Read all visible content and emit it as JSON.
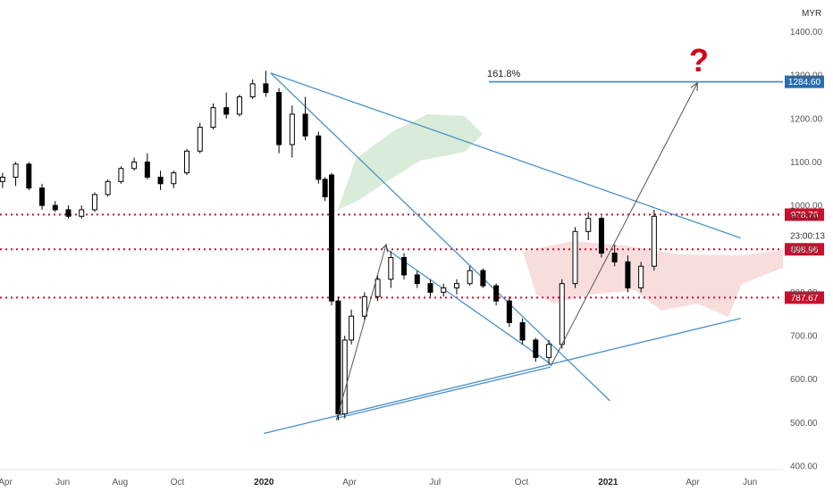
{
  "colors": {
    "candle": "#000000",
    "trendline": "#4a90c8",
    "resistance_dotted": "#c8102e",
    "arrow": "#555555",
    "cloud_green": "#cfe6cf",
    "cloud_red": "#f6d2d2",
    "price_badge_blue": "#2a6db0",
    "price_badge_red": "#c8102e",
    "question_mark": "#d0021b"
  },
  "chart_data": {
    "type": "candlestick",
    "currency": "MYR",
    "y_axis": {
      "ticks": [
        400,
        500,
        600,
        700,
        800,
        900,
        1000,
        1100,
        1200,
        1300,
        1400
      ],
      "labels": [
        "400.00",
        "500.00",
        "600.00",
        "700.00",
        "800.00",
        "900.00",
        "1000.00",
        "1100.00",
        "1200.00",
        "1300.00",
        "1400.00"
      ],
      "range": [
        400,
        1410
      ]
    },
    "x_axis": {
      "labels": [
        "Apr",
        "Jun",
        "Aug",
        "Oct",
        "2020",
        "Apr",
        "Jul",
        "Oct",
        "2021",
        "Apr",
        "Jun"
      ],
      "bold_labels": [
        "2020",
        "2021"
      ],
      "positions": [
        "2019-04-01",
        "2019-06-01",
        "2019-08-01",
        "2019-10-01",
        "2020-01-01",
        "2020-04-01",
        "2020-07-01",
        "2020-10-01",
        "2021-01-01",
        "2021-04-01",
        "2021-06-01"
      ]
    },
    "price_levels": [
      {
        "label": "1284.60",
        "value": 1284.6,
        "style": "solid-blue"
      },
      {
        "label": "978.76",
        "value": 978.76,
        "style": "dotted-red"
      },
      {
        "label": "898.96",
        "value": 898.96,
        "style": "dotted-red"
      },
      {
        "label": "787.67",
        "value": 787.67,
        "style": "dotted-red"
      }
    ],
    "price_readouts": [
      {
        "label": "973.99",
        "value": 973.99
      },
      {
        "label": "23:00:13",
        "value": 930
      }
    ],
    "fib_label": "161.8%",
    "annotation": "?",
    "trendlines": [
      {
        "name": "upper-channel",
        "from": [
          "2020-01-08",
          1305
        ],
        "to": [
          "2021-05-22",
          925
        ]
      },
      {
        "name": "steep-down",
        "from": [
          "2020-01-08",
          1305
        ],
        "to": [
          "2021-01-03",
          550
        ]
      },
      {
        "name": "lower-support",
        "from": [
          "2020-01-01",
          475
        ],
        "to": [
          "2021-05-22",
          740
        ]
      },
      {
        "name": "wedge-top",
        "from": [
          "2020-05-10",
          900
        ],
        "to": [
          "2020-11-01",
          635
        ]
      },
      {
        "name": "wedge-bottom",
        "from": [
          "2020-03-18",
          510
        ],
        "to": [
          "2020-11-01",
          628
        ]
      }
    ],
    "arrows": [
      {
        "from": [
          "2020-03-18",
          505
        ],
        "to": [
          "2020-05-10",
          910
        ]
      },
      {
        "from": [
          "2020-11-01",
          630
        ],
        "to": [
          "2021-04-06",
          1282
        ]
      }
    ],
    "candles": [
      [
        "2019-03-15",
        1080,
        1095,
        1040,
        1055
      ],
      [
        "2019-03-29",
        1055,
        1075,
        1040,
        1065
      ],
      [
        "2019-04-12",
        1065,
        1100,
        1045,
        1095
      ],
      [
        "2019-04-26",
        1095,
        1100,
        1035,
        1040
      ],
      [
        "2019-05-10",
        1040,
        1050,
        990,
        1000
      ],
      [
        "2019-05-24",
        1000,
        1010,
        985,
        990
      ],
      [
        "2019-06-07",
        990,
        1000,
        970,
        975
      ],
      [
        "2019-06-21",
        975,
        1000,
        970,
        990
      ],
      [
        "2019-07-05",
        990,
        1030,
        985,
        1025
      ],
      [
        "2019-07-19",
        1025,
        1060,
        1020,
        1055
      ],
      [
        "2019-08-02",
        1055,
        1090,
        1050,
        1085
      ],
      [
        "2019-08-16",
        1085,
        1110,
        1080,
        1100
      ],
      [
        "2019-08-30",
        1100,
        1120,
        1060,
        1065
      ],
      [
        "2019-09-13",
        1065,
        1080,
        1035,
        1050
      ],
      [
        "2019-09-27",
        1050,
        1080,
        1040,
        1075
      ],
      [
        "2019-10-11",
        1075,
        1130,
        1070,
        1125
      ],
      [
        "2019-10-25",
        1125,
        1190,
        1120,
        1180
      ],
      [
        "2019-11-08",
        1180,
        1235,
        1175,
        1225
      ],
      [
        "2019-11-22",
        1225,
        1260,
        1200,
        1210
      ],
      [
        "2019-12-06",
        1210,
        1255,
        1205,
        1250
      ],
      [
        "2019-12-20",
        1250,
        1290,
        1245,
        1280
      ],
      [
        "2020-01-03",
        1280,
        1310,
        1250,
        1260
      ],
      [
        "2020-01-17",
        1260,
        1270,
        1120,
        1140
      ],
      [
        "2020-01-31",
        1140,
        1230,
        1110,
        1210
      ],
      [
        "2020-02-14",
        1210,
        1250,
        1150,
        1160
      ],
      [
        "2020-02-28",
        1160,
        1170,
        1050,
        1060
      ],
      [
        "2020-03-06",
        1060,
        1065,
        1010,
        1020
      ],
      [
        "2020-03-13",
        1070,
        1075,
        770,
        780
      ],
      [
        "2020-03-20",
        780,
        790,
        505,
        520
      ],
      [
        "2020-03-27",
        520,
        700,
        510,
        690
      ],
      [
        "2020-04-03",
        690,
        760,
        680,
        745
      ],
      [
        "2020-04-17",
        745,
        800,
        735,
        790
      ],
      [
        "2020-05-01",
        790,
        840,
        780,
        830
      ],
      [
        "2020-05-15",
        830,
        895,
        810,
        880
      ],
      [
        "2020-05-29",
        880,
        890,
        830,
        840
      ],
      [
        "2020-06-12",
        840,
        850,
        810,
        820
      ],
      [
        "2020-06-26",
        820,
        830,
        790,
        800
      ],
      [
        "2020-07-10",
        800,
        820,
        790,
        810
      ],
      [
        "2020-07-24",
        810,
        830,
        795,
        820
      ],
      [
        "2020-08-07",
        820,
        860,
        815,
        850
      ],
      [
        "2020-08-21",
        850,
        855,
        810,
        815
      ],
      [
        "2020-09-04",
        815,
        820,
        770,
        780
      ],
      [
        "2020-09-18",
        780,
        790,
        720,
        730
      ],
      [
        "2020-10-02",
        730,
        740,
        680,
        690
      ],
      [
        "2020-10-16",
        690,
        695,
        640,
        650
      ],
      [
        "2020-10-30",
        650,
        690,
        635,
        680
      ],
      [
        "2020-11-13",
        680,
        830,
        670,
        820
      ],
      [
        "2020-11-27",
        820,
        950,
        810,
        940
      ],
      [
        "2020-12-11",
        940,
        985,
        920,
        970
      ],
      [
        "2020-12-25",
        970,
        975,
        880,
        890
      ],
      [
        "2021-01-08",
        890,
        910,
        860,
        870
      ],
      [
        "2021-01-22",
        870,
        885,
        800,
        810
      ],
      [
        "2021-02-05",
        810,
        870,
        800,
        860
      ],
      [
        "2021-02-19",
        860,
        990,
        850,
        975
      ]
    ]
  }
}
